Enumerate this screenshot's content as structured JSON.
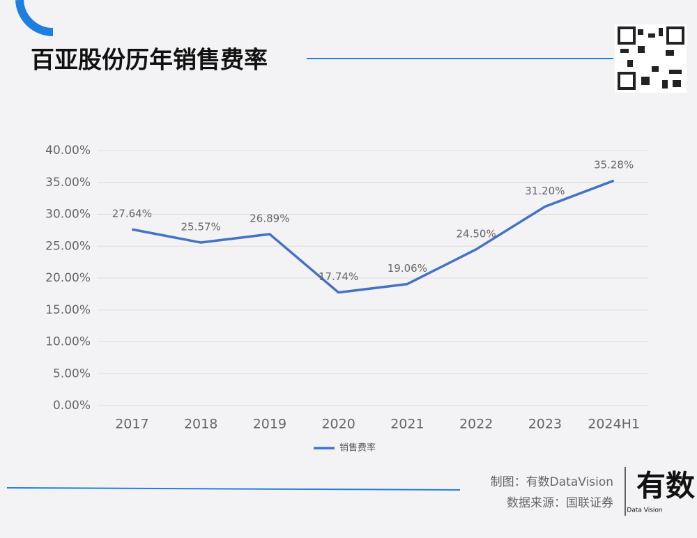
{
  "chart_data": {
    "type": "line",
    "title": "百亚股份历年销售费率",
    "categories": [
      "2017",
      "2018",
      "2019",
      "2020",
      "2021",
      "2022",
      "2023",
      "2024H1"
    ],
    "series": [
      {
        "name": "销售费率",
        "color": "#4472c4",
        "values": [
          27.64,
          25.57,
          26.89,
          17.74,
          19.06,
          24.5,
          31.2,
          35.28
        ],
        "value_labels": [
          "27.64%",
          "25.57%",
          "26.89%",
          "17.74%",
          "19.06%",
          "24.50%",
          "31.20%",
          "35.28%"
        ]
      }
    ],
    "ylim": [
      0,
      40
    ],
    "yticks": [
      {
        "value": 0,
        "label": "0.00%"
      },
      {
        "value": 5,
        "label": "5.00%"
      },
      {
        "value": 10,
        "label": "10.00%"
      },
      {
        "value": 15,
        "label": "15.00%"
      },
      {
        "value": 20,
        "label": "20.00%"
      },
      {
        "value": 25,
        "label": "25.00%"
      },
      {
        "value": 30,
        "label": "30.00%"
      },
      {
        "value": 35,
        "label": "35.00%"
      },
      {
        "value": 40,
        "label": "40.00%"
      }
    ],
    "grid": true,
    "legend": "bottom"
  },
  "branding": {
    "credit": "制图：有数DataVision",
    "source": "数据来源：国联证券",
    "logo": "有数",
    "logo_sub": "Data Vision"
  }
}
